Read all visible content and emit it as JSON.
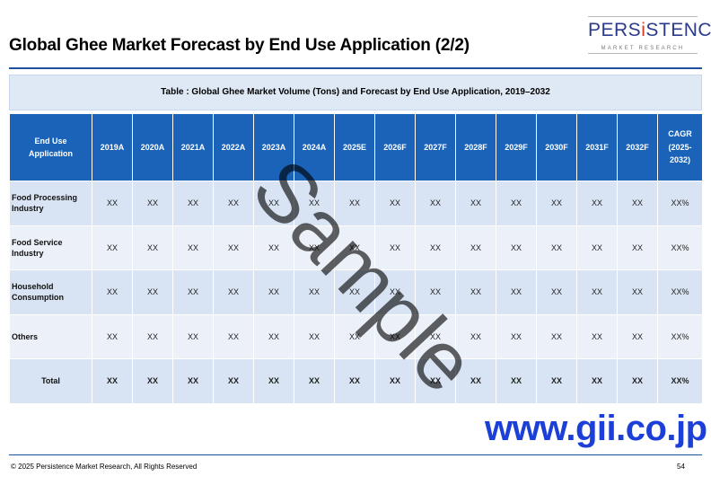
{
  "page": {
    "title": "Global Ghee Market Forecast by End Use Application (2/2)"
  },
  "logo": {
    "text_pre": "PERS",
    "text_accent": "i",
    "text_post": "STENCE",
    "subtext": "MARKET RESEARCH"
  },
  "table": {
    "caption": "Table : Global Ghee Market Volume (Tons) and Forecast by End Use Application, 2019–2032",
    "header": {
      "first_col_line1": "End Use",
      "first_col_line2": "Application",
      "years": [
        "2019A",
        "2020A",
        "2021A",
        "2022A",
        "2023A",
        "2024A",
        "2025E",
        "2026F",
        "2027F",
        "2028F",
        "2029F",
        "2030F",
        "2031F",
        "2032F"
      ],
      "cagr_line1": "CAGR",
      "cagr_line2": "(2025-",
      "cagr_line3": "2032)"
    },
    "rows": [
      {
        "label_line1": "Food Processing",
        "label_line2": "Industry",
        "values": [
          "XX",
          "XX",
          "XX",
          "XX",
          "XX",
          "XX",
          "XX",
          "XX",
          "XX",
          "XX",
          "XX",
          "XX",
          "XX",
          "XX"
        ],
        "cagr": "XX%"
      },
      {
        "label_line1": "Food Service",
        "label_line2": "Industry",
        "values": [
          "XX",
          "XX",
          "XX",
          "XX",
          "XX",
          "XX",
          "XX",
          "XX",
          "XX",
          "XX",
          "XX",
          "XX",
          "XX",
          "XX"
        ],
        "cagr": "XX%"
      },
      {
        "label_line1": "Household",
        "label_line2": "Consumption",
        "values": [
          "XX",
          "XX",
          "XX",
          "XX",
          "XX",
          "XX",
          "XX",
          "XX",
          "XX",
          "XX",
          "XX",
          "XX",
          "XX",
          "XX"
        ],
        "cagr": "XX%"
      },
      {
        "label_line1": "Others",
        "label_line2": "",
        "values": [
          "XX",
          "XX",
          "XX",
          "XX",
          "XX",
          "XX",
          "XX",
          "XX",
          "XX",
          "XX",
          "XX",
          "XX",
          "XX",
          "XX"
        ],
        "cagr": "XX%"
      }
    ],
    "total": {
      "label": "Total",
      "values": [
        "XX",
        "XX",
        "XX",
        "XX",
        "XX",
        "XX",
        "XX",
        "XX",
        "XX",
        "XX",
        "XX",
        "XX",
        "XX",
        "XX"
      ],
      "cagr": "XX%"
    }
  },
  "watermark": "Sample",
  "stamp": "www.gii.co.jp",
  "footer": {
    "copyright": "© 2025 Persistence Market Research, All Rights Reserved",
    "page_number": "54"
  },
  "colors": {
    "header_blue": "#1a63b8",
    "row_light": "#d8e3f3",
    "row_lighter": "#ecf1f9",
    "stamp_blue": "#1c3fd8",
    "logo_blue": "#2c3a8c",
    "logo_red": "#d23a2a"
  }
}
